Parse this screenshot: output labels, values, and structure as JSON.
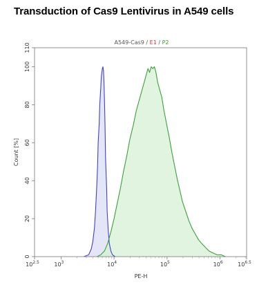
{
  "title": "Transduction of Cas9 Lentivirus in A549 cells",
  "chart_data": {
    "type": "area",
    "plot_title_parts": [
      {
        "text": "A549-Cas9",
        "color": "#555555"
      },
      {
        "text": " / ",
        "color": "#555555"
      },
      {
        "text": "E1",
        "color": "#e0303a"
      },
      {
        "text": " / ",
        "color": "#555555"
      },
      {
        "text": "P2",
        "color": "#2aa02a"
      }
    ],
    "xlabel": "PE-H",
    "ylabel": "Count  [%]",
    "x_scale": "log10",
    "xlim_log10": [
      2.5,
      6.5
    ],
    "ylim": [
      0,
      110
    ],
    "grid": false,
    "x_ticks": [
      {
        "log10": 2.5,
        "base": "10",
        "exp": "2.5"
      },
      {
        "log10": 3,
        "base": "10",
        "exp": "3"
      },
      {
        "log10": 4,
        "base": "10",
        "exp": "4"
      },
      {
        "log10": 5,
        "base": "10",
        "exp": "5"
      },
      {
        "log10": 6,
        "base": "10",
        "exp": "6"
      },
      {
        "log10": 6.5,
        "base": "10",
        "exp": "6.5"
      }
    ],
    "y_ticks": [
      {
        "value": 0,
        "label": "0"
      },
      {
        "value": 20,
        "label": "20"
      },
      {
        "value": 40,
        "label": "40"
      },
      {
        "value": 60,
        "label": "60"
      },
      {
        "value": 80,
        "label": "80"
      },
      {
        "value": 100,
        "label": "100"
      },
      {
        "value": 110,
        "label": "110"
      }
    ],
    "series": [
      {
        "name": "E1",
        "color": "#4040d0",
        "fill": "#dcdcf6",
        "points_log10_x": [
          [
            3.43,
            0
          ],
          [
            3.52,
            1
          ],
          [
            3.57,
            4
          ],
          [
            3.6,
            8
          ],
          [
            3.63,
            15
          ],
          [
            3.65,
            24
          ],
          [
            3.67,
            35
          ],
          [
            3.69,
            48
          ],
          [
            3.7,
            60
          ],
          [
            3.72,
            70
          ],
          [
            3.73,
            80
          ],
          [
            3.75,
            89
          ],
          [
            3.76,
            95
          ],
          [
            3.78,
            99
          ],
          [
            3.79,
            100
          ],
          [
            3.8,
            98
          ],
          [
            3.81,
            92
          ],
          [
            3.82,
            82
          ],
          [
            3.83,
            68
          ],
          [
            3.84,
            52
          ],
          [
            3.86,
            36
          ],
          [
            3.87,
            24
          ],
          [
            3.89,
            14
          ],
          [
            3.91,
            7
          ],
          [
            3.94,
            3
          ],
          [
            3.97,
            1
          ],
          [
            4.02,
            0
          ]
        ]
      },
      {
        "name": "P2",
        "color": "#3aa03a",
        "fill": "#d6f0d6",
        "points_log10_x": [
          [
            3.68,
            0
          ],
          [
            3.75,
            1
          ],
          [
            3.82,
            3
          ],
          [
            3.88,
            7
          ],
          [
            3.94,
            13
          ],
          [
            4.0,
            20
          ],
          [
            4.06,
            28
          ],
          [
            4.12,
            36
          ],
          [
            4.18,
            45
          ],
          [
            4.24,
            53
          ],
          [
            4.3,
            62
          ],
          [
            4.36,
            69
          ],
          [
            4.42,
            77
          ],
          [
            4.48,
            83
          ],
          [
            4.53,
            88
          ],
          [
            4.57,
            92
          ],
          [
            4.61,
            96
          ],
          [
            4.64,
            99
          ],
          [
            4.67,
            97
          ],
          [
            4.7,
            100
          ],
          [
            4.73,
            99
          ],
          [
            4.76,
            100
          ],
          [
            4.79,
            97
          ],
          [
            4.82,
            92
          ],
          [
            4.86,
            88
          ],
          [
            4.9,
            84
          ],
          [
            4.94,
            77
          ],
          [
            4.99,
            70
          ],
          [
            5.04,
            63
          ],
          [
            5.09,
            55
          ],
          [
            5.14,
            48
          ],
          [
            5.19,
            41
          ],
          [
            5.24,
            35
          ],
          [
            5.29,
            29
          ],
          [
            5.35,
            24
          ],
          [
            5.41,
            19
          ],
          [
            5.47,
            15
          ],
          [
            5.53,
            12
          ],
          [
            5.59,
            9
          ],
          [
            5.65,
            7
          ],
          [
            5.72,
            5
          ],
          [
            5.79,
            3
          ],
          [
            5.86,
            2
          ],
          [
            5.94,
            1
          ],
          [
            6.02,
            1
          ],
          [
            6.1,
            0
          ]
        ]
      }
    ]
  }
}
